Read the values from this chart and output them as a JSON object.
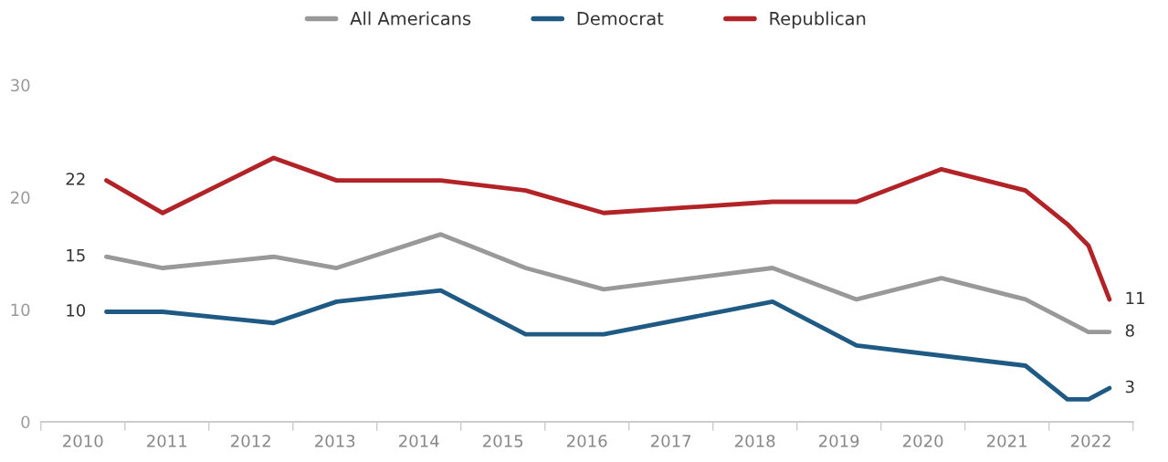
{
  "chart_data": {
    "type": "line",
    "series": [
      {
        "name": "All Americans",
        "color": "#999999",
        "x": [
          2010.78,
          2011.45,
          2012.77,
          2013.52,
          2014.76,
          2015.77,
          2016.7,
          2018.71,
          2019.71,
          2020.72,
          2021.72,
          2022.47,
          2022.72
        ],
        "values": [
          14.7,
          13.7,
          14.7,
          13.7,
          16.7,
          13.7,
          11.8,
          13.7,
          10.9,
          12.8,
          10.9,
          8.0,
          8.0
        ],
        "value_labels": [
          "15",
          null,
          null,
          null,
          null,
          null,
          null,
          null,
          null,
          null,
          null,
          null,
          "8"
        ]
      },
      {
        "name": "Democrat",
        "color": "#1f5a85",
        "x": [
          2010.78,
          2011.45,
          2012.77,
          2013.52,
          2014.76,
          2015.77,
          2016.7,
          2018.71,
          2019.71,
          2021.72,
          2022.22,
          2022.47,
          2022.72
        ],
        "values": [
          9.8,
          9.8,
          8.8,
          10.7,
          11.7,
          7.8,
          7.8,
          10.7,
          6.8,
          5.0,
          2.0,
          2.0,
          3.0
        ],
        "value_labels": [
          "10",
          null,
          null,
          null,
          null,
          null,
          null,
          null,
          null,
          null,
          null,
          null,
          "3"
        ]
      },
      {
        "name": "Republican",
        "color": "#b22328",
        "x": [
          2010.78,
          2011.45,
          2012.77,
          2013.52,
          2014.76,
          2015.77,
          2016.7,
          2018.71,
          2019.71,
          2020.72,
          2021.72,
          2022.22,
          2022.47,
          2022.72
        ],
        "values": [
          21.5,
          18.6,
          23.5,
          21.5,
          21.5,
          20.6,
          18.6,
          19.6,
          19.6,
          22.5,
          20.6,
          17.6,
          15.7,
          10.9
        ],
        "value_labels": [
          "22",
          null,
          null,
          null,
          null,
          null,
          null,
          null,
          null,
          null,
          null,
          null,
          null,
          "11"
        ]
      }
    ],
    "xlim": [
      2010,
      2023
    ],
    "xticks": [
      {
        "value": 2010,
        "label": null
      },
      {
        "value": 2010.5,
        "label": "2010"
      },
      {
        "value": 2011,
        "label": null
      },
      {
        "value": 2011.5,
        "label": "2011"
      },
      {
        "value": 2012,
        "label": null
      },
      {
        "value": 2012.5,
        "label": "2012"
      },
      {
        "value": 2013,
        "label": null
      },
      {
        "value": 2013.5,
        "label": "2013"
      },
      {
        "value": 2014,
        "label": null
      },
      {
        "value": 2014.5,
        "label": "2014"
      },
      {
        "value": 2015,
        "label": null
      },
      {
        "value": 2015.5,
        "label": "2015"
      },
      {
        "value": 2016,
        "label": null
      },
      {
        "value": 2016.5,
        "label": "2016"
      },
      {
        "value": 2017,
        "label": null
      },
      {
        "value": 2017.5,
        "label": "2017"
      },
      {
        "value": 2018,
        "label": null
      },
      {
        "value": 2018.5,
        "label": "2018"
      },
      {
        "value": 2019,
        "label": null
      },
      {
        "value": 2019.5,
        "label": "2019"
      },
      {
        "value": 2020,
        "label": null
      },
      {
        "value": 2020.5,
        "label": "2020"
      },
      {
        "value": 2021,
        "label": null
      },
      {
        "value": 2021.5,
        "label": "2021"
      },
      {
        "value": 2022,
        "label": null
      },
      {
        "value": 2022.5,
        "label": "2022"
      },
      {
        "value": 2023,
        "label": null
      }
    ],
    "ylim": [
      0,
      30
    ],
    "yticks": [
      0,
      10,
      20,
      30
    ],
    "grid": false,
    "legend": "top",
    "marker": "none",
    "line_style": "solid"
  }
}
